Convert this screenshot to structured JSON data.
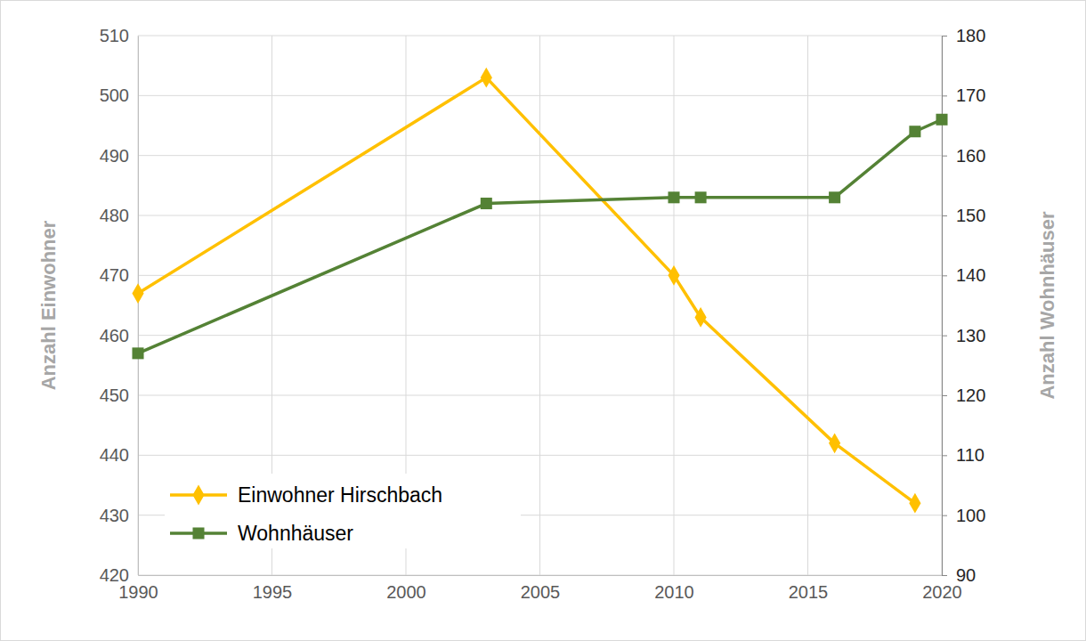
{
  "chart_data": {
    "type": "line",
    "x": [
      1990,
      2003,
      2010,
      2011,
      2016,
      2019,
      2020
    ],
    "xlim": [
      1990,
      2020
    ],
    "xticks": [
      1990,
      1995,
      2000,
      2005,
      2010,
      2015,
      2020
    ],
    "ylim": [
      420,
      510
    ],
    "yticks": [
      420,
      430,
      440,
      450,
      460,
      470,
      480,
      490,
      500,
      510
    ],
    "y2lim": [
      90,
      180
    ],
    "y2ticks": [
      90,
      100,
      110,
      120,
      130,
      140,
      150,
      160,
      170,
      180
    ],
    "ylabel": "Anzahl Einwohner",
    "y2label": "Anzahl Wohnhäuser",
    "grid": true,
    "legend": "lower left",
    "series": [
      {
        "name": "Einwohner Hirschbach",
        "color": "#FFC000",
        "marker": "diamond",
        "values": [
          467,
          503,
          470,
          463,
          442,
          432,
          null
        ]
      },
      {
        "name": "Wohnhäuser",
        "color": "#548235",
        "marker": "square",
        "axis": "y2",
        "values": [
          127,
          152,
          153,
          153,
          153,
          164,
          166
        ]
      }
    ]
  }
}
